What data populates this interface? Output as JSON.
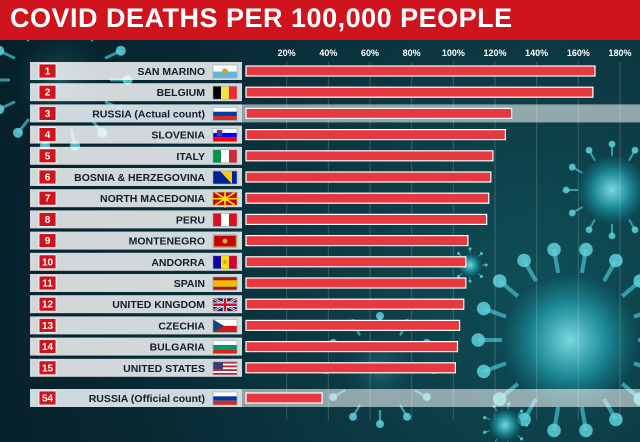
{
  "title": "COVID DEATHS PER 100,000 PEOPLE",
  "chart_data": {
    "type": "bar",
    "orientation": "horizontal",
    "title": "COVID DEATHS PER 100,000 PEOPLE",
    "xlim": [
      0,
      180
    ],
    "x_ticks": [
      "20%",
      "40%",
      "60%",
      "80%",
      "100%",
      "120%",
      "140%",
      "160%",
      "180%"
    ],
    "x_tick_values": [
      20,
      40,
      60,
      80,
      100,
      120,
      140,
      160,
      180
    ],
    "gridlines": true,
    "bar_color": "#e8383f",
    "highlight_row_color": "#d6e1e6",
    "rank_badge_color": "#d0141d",
    "categories": [
      {
        "rank": "1",
        "name": "SAN MARINO",
        "value": 168,
        "highlight": false,
        "flag": "san-marino-flag"
      },
      {
        "rank": "2",
        "name": "BELGIUM",
        "value": 167,
        "highlight": false,
        "flag": "belgium-flag"
      },
      {
        "rank": "3",
        "name": "RUSSIA (Actual count)",
        "value": 128,
        "highlight": true,
        "flag": "russia-flag"
      },
      {
        "rank": "4",
        "name": "SLOVENIA",
        "value": 125,
        "highlight": false,
        "flag": "slovenia-flag"
      },
      {
        "rank": "5",
        "name": "ITALY",
        "value": 119,
        "highlight": false,
        "flag": "italy-flag"
      },
      {
        "rank": "6",
        "name": "BOSNIA & HERZEGOVINA",
        "value": 118,
        "highlight": false,
        "flag": "bosnia-flag"
      },
      {
        "rank": "7",
        "name": "NORTH MACEDONIA",
        "value": 117,
        "highlight": false,
        "flag": "north-macedonia-flag"
      },
      {
        "rank": "8",
        "name": "PERU",
        "value": 116,
        "highlight": false,
        "flag": "peru-flag"
      },
      {
        "rank": "9",
        "name": "MONTENEGRO",
        "value": 107,
        "highlight": false,
        "flag": "montenegro-flag"
      },
      {
        "rank": "10",
        "name": "ANDORRA",
        "value": 106,
        "highlight": false,
        "flag": "andorra-flag"
      },
      {
        "rank": "11",
        "name": "SPAIN",
        "value": 106,
        "highlight": false,
        "flag": "spain-flag"
      },
      {
        "rank": "12",
        "name": "UNITED KINGDOM",
        "value": 105,
        "highlight": false,
        "flag": "uk-flag"
      },
      {
        "rank": "13",
        "name": "CZECHIA",
        "value": 103,
        "highlight": false,
        "flag": "czechia-flag"
      },
      {
        "rank": "14",
        "name": "BULGARIA",
        "value": 102,
        "highlight": false,
        "flag": "bulgaria-flag"
      },
      {
        "rank": "15",
        "name": "UNITED STATES",
        "value": 101,
        "highlight": false,
        "flag": "usa-flag"
      },
      {
        "rank": "54",
        "name": "RUSSIA (Official count)",
        "value": 37,
        "highlight": true,
        "flag": "russia-flag"
      }
    ]
  }
}
